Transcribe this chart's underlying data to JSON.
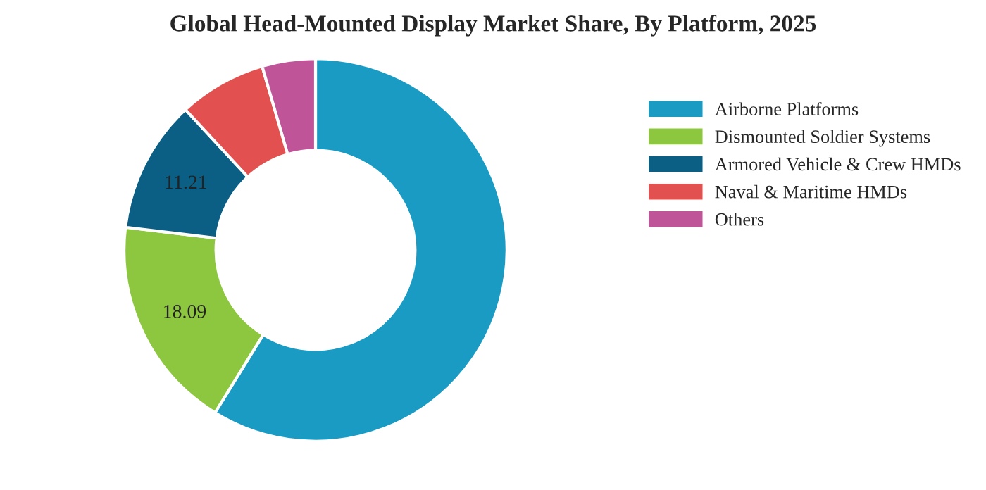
{
  "chart_data": {
    "type": "donut",
    "title": "Global Head-Mounted Display Market Share, By Platform, 2025",
    "categories": [
      "Airborne Platforms",
      "Dismounted Soldier Systems",
      "Armored Vehicle & Crew HMDs",
      "Naval & Maritime HMDs",
      "Others"
    ],
    "values": [
      58.8,
      18.09,
      11.21,
      7.4,
      4.5
    ],
    "colors": [
      "#1a9bc4",
      "#8dc63f",
      "#0b5e84",
      "#e2504f",
      "#c05499"
    ],
    "value_labels": [
      null,
      "18.09",
      "11.21",
      null,
      null
    ],
    "legend": "right"
  }
}
